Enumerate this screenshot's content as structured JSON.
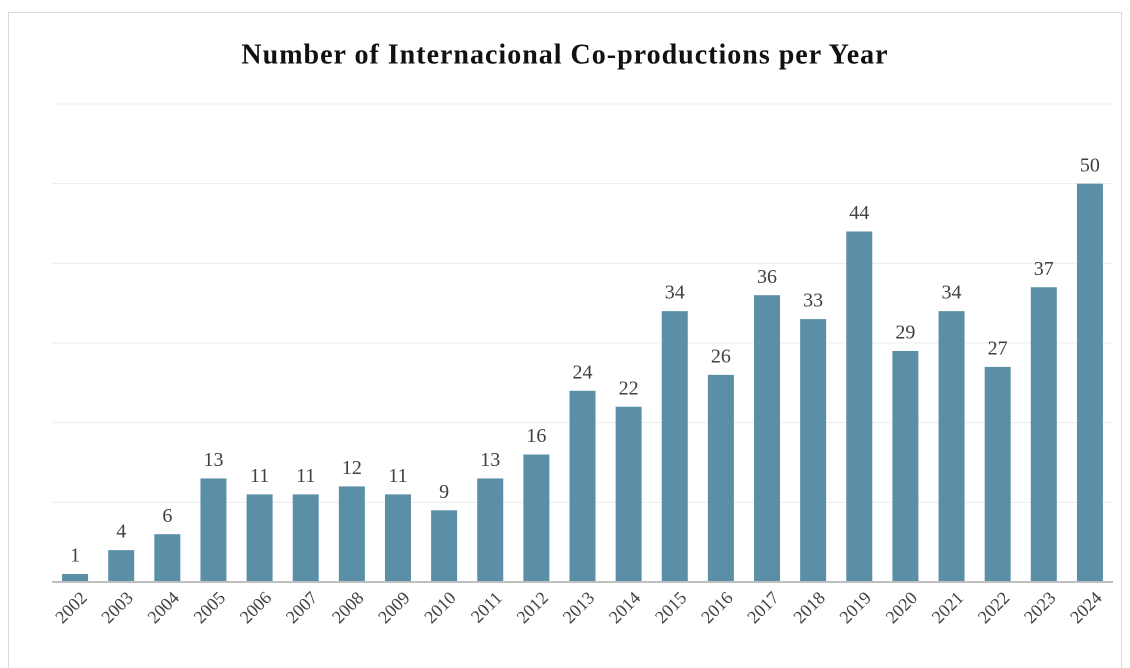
{
  "chart_data": {
    "type": "bar",
    "title": "Number of Internacional Co-productions per Year",
    "categories": [
      "2002",
      "2003",
      "2004",
      "2005",
      "2006",
      "2007",
      "2008",
      "2009",
      "2010",
      "2011",
      "2012",
      "2013",
      "2014",
      "2015",
      "2016",
      "2017",
      "2018",
      "2019",
      "2020",
      "2021",
      "2022",
      "2023",
      "2024"
    ],
    "values": [
      1,
      4,
      6,
      13,
      11,
      11,
      12,
      11,
      9,
      13,
      16,
      24,
      22,
      34,
      26,
      36,
      33,
      44,
      29,
      34,
      27,
      37,
      50
    ],
    "color": "#5a8fa7",
    "ylim": [
      0,
      60
    ],
    "yticks": [
      0,
      10,
      20,
      30,
      40,
      50,
      60
    ],
    "grid": true
  }
}
